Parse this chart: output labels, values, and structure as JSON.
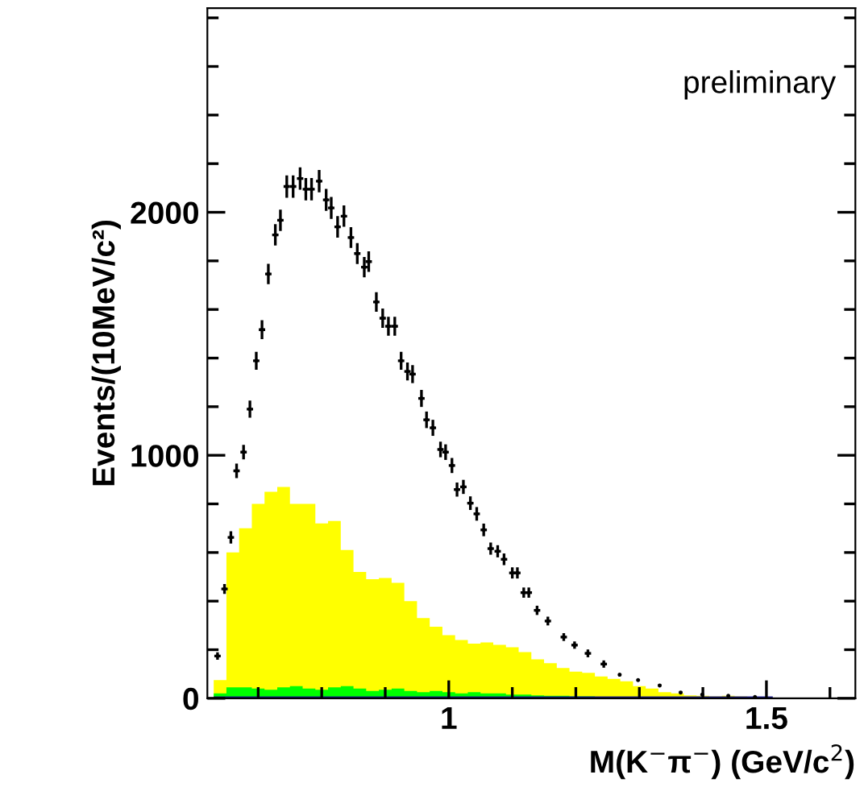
{
  "chart_data": {
    "type": "histogram",
    "xlabel": "M(K$^{−}$π$^{−}$) (GeV/c$^{2}$)",
    "ylabel": "Events/(10MeV/c²)",
    "annotations": [
      "preliminary"
    ],
    "xlim": [
      0.62,
      1.64
    ],
    "xticks": [
      {
        "value": 0.7,
        "label": null
      },
      {
        "value": 0.8,
        "label": null
      },
      {
        "value": 0.9,
        "label": null
      },
      1,
      {
        "value": 1.1,
        "label": null
      },
      {
        "value": 1.2,
        "label": null
      },
      {
        "value": 1.3,
        "label": null
      },
      {
        "value": 1.4,
        "label": null
      },
      1.5,
      {
        "value": 1.6,
        "label": null
      }
    ],
    "ylim": [
      0,
      2840
    ],
    "yticks": [
      0,
      {
        "value": 200,
        "label": null
      },
      {
        "value": 400,
        "label": null
      },
      {
        "value": 600,
        "label": null
      },
      {
        "value": 800,
        "label": null
      },
      1000,
      {
        "value": 1200,
        "label": null
      },
      {
        "value": 1400,
        "label": null
      },
      {
        "value": 1600,
        "label": null
      },
      {
        "value": 1800,
        "label": null
      },
      2000,
      {
        "value": 2200,
        "label": null
      },
      {
        "value": 2400,
        "label": null
      },
      {
        "value": 2600,
        "label": null
      },
      {
        "value": 2800,
        "label": null
      }
    ],
    "grid": false,
    "legend": false,
    "bins": [
      0.63,
      0.65,
      0.67,
      0.69,
      0.71,
      0.73,
      0.75,
      0.77,
      0.79,
      0.81,
      0.83,
      0.85,
      0.87,
      0.89,
      0.91,
      0.93,
      0.95,
      0.97,
      0.99,
      1.01,
      1.03,
      1.05,
      1.07,
      1.09,
      1.11,
      1.13,
      1.15,
      1.17,
      1.19,
      1.21,
      1.23,
      1.25,
      1.27,
      1.29,
      1.31,
      1.33,
      1.35,
      1.37,
      1.39,
      1.41,
      1.43,
      1.45,
      1.47,
      1.49,
      1.51
    ],
    "series": [
      {
        "color": "#ffff00",
        "values": [
          75,
          600,
          700,
          800,
          850,
          870,
          800,
          800,
          720,
          730,
          610,
          520,
          490,
          495,
          475,
          400,
          330,
          295,
          260,
          240,
          225,
          230,
          220,
          210,
          190,
          160,
          145,
          125,
          110,
          105,
          90,
          80,
          70,
          50,
          40,
          25,
          20,
          12,
          10,
          8,
          10,
          8,
          5,
          3
        ]
      },
      {
        "color": "#00ff00",
        "values": [
          20,
          45,
          45,
          40,
          35,
          45,
          50,
          40,
          35,
          45,
          50,
          40,
          30,
          35,
          40,
          30,
          25,
          30,
          25,
          20,
          25,
          20,
          20,
          15,
          15,
          12,
          10,
          10,
          8,
          8,
          6,
          5,
          5,
          4,
          3,
          3,
          2,
          2,
          2,
          1,
          1,
          1,
          1,
          1
        ]
      },
      {
        "color": "#1a1a8c",
        "values": [
          8,
          8,
          8,
          8,
          8,
          8,
          8,
          8,
          8,
          8,
          8,
          8,
          8,
          8,
          8,
          8,
          8,
          8,
          8,
          8,
          8,
          8,
          8,
          8,
          8,
          8,
          8,
          8,
          8,
          8,
          8,
          8,
          8,
          8,
          8,
          8,
          8,
          8,
          8,
          8,
          8,
          8,
          8,
          8
        ]
      },
      {
        "type": "scatter",
        "color": "#000000",
        "x": [
          0.636,
          0.647,
          0.657,
          0.666,
          0.677,
          0.687,
          0.697,
          0.706,
          0.716,
          0.727,
          0.735,
          0.745,
          0.755,
          0.766,
          0.775,
          0.784,
          0.796,
          0.807,
          0.815,
          0.825,
          0.835,
          0.846,
          0.856,
          0.867,
          0.874,
          0.886,
          0.896,
          0.905,
          0.915,
          0.925,
          0.935,
          0.943,
          0.957,
          0.965,
          0.975,
          0.987,
          0.995,
          1.005,
          1.013,
          1.023,
          1.034,
          1.044,
          1.055,
          1.066,
          1.077,
          1.087,
          1.1,
          1.108,
          1.118,
          1.126,
          1.139,
          1.156,
          1.181,
          1.198,
          1.219,
          1.244,
          1.269,
          1.298,
          1.332,
          1.365,
          1.399,
          1.44,
          1.482
        ],
        "values": [
          174,
          450,
          662,
          936,
          1013,
          1190,
          1389,
          1517,
          1746,
          1907,
          1967,
          2106,
          2106,
          2139,
          2095,
          2095,
          2128,
          2051,
          2018,
          1940,
          1984,
          1896,
          1830,
          1774,
          1797,
          1631,
          1564,
          1531,
          1531,
          1389,
          1345,
          1334,
          1234,
          1146,
          1113,
          1024,
          1013,
          958,
          859,
          870,
          803,
          759,
          693,
          616,
          605,
          572,
          516,
          516,
          435,
          435,
          362,
          318,
          252,
          219,
          185,
          141,
          97,
          75,
          53,
          24,
          15,
          10,
          5
        ],
        "errors": [
          15,
          20,
          25,
          30,
          30,
          35,
          37,
          39,
          42,
          44,
          44,
          46,
          46,
          46,
          46,
          46,
          46,
          45,
          45,
          44,
          44,
          43,
          43,
          42,
          42,
          40,
          40,
          39,
          39,
          37,
          37,
          37,
          35,
          34,
          33,
          32,
          32,
          31,
          29,
          29,
          28,
          28,
          26,
          25,
          25,
          24,
          23,
          23,
          21,
          21,
          19,
          18,
          16,
          15,
          16,
          15,
          null,
          null,
          null,
          null,
          null,
          null,
          null
        ],
        "xerrors": [
          0.005,
          0.005,
          0.005,
          0.005,
          0.005,
          0.005,
          0.005,
          0.005,
          0.005,
          0.005,
          0.005,
          0.005,
          0.005,
          0.005,
          0.005,
          0.005,
          0.005,
          0.005,
          0.005,
          0.005,
          0.005,
          0.005,
          0.005,
          0.005,
          0.005,
          0.005,
          0.005,
          0.005,
          0.005,
          0.005,
          0.005,
          0.005,
          0.005,
          0.005,
          0.005,
          0.005,
          0.005,
          0.005,
          0.005,
          0.005,
          0.005,
          0.005,
          0.005,
          0.005,
          0.005,
          0.005,
          0.005,
          0.005,
          0.005,
          0.005,
          0.005,
          0.005,
          0.005,
          0.005,
          0.005,
          0.005,
          null,
          null,
          null,
          null,
          null,
          null,
          null
        ]
      }
    ]
  }
}
